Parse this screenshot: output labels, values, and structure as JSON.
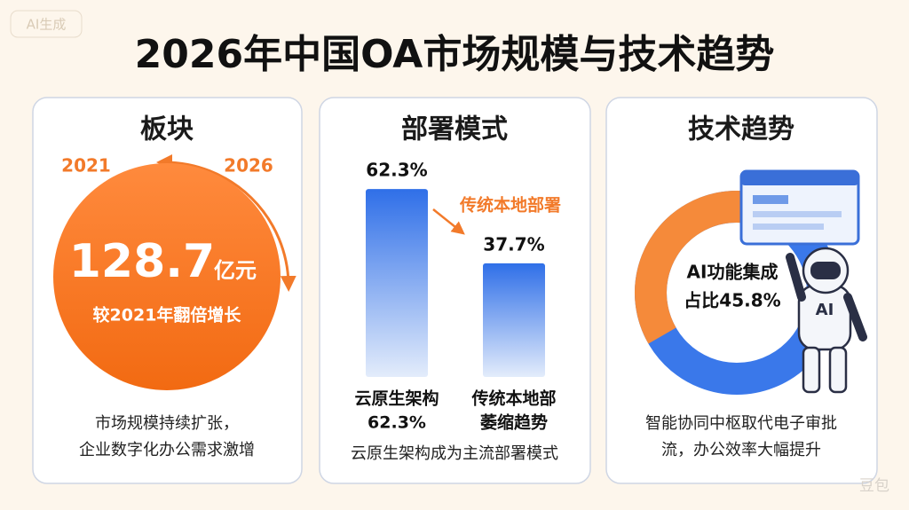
{
  "badge": "AI生成",
  "title": "2026年中国OA市场规模与技术趋势",
  "panels": [
    {
      "heading": "板块",
      "year_from": "2021",
      "year_to": "2026",
      "value": "128.7",
      "unit": "亿元",
      "note": "较2021年翻倍增长",
      "caption": [
        "市场规模持续扩张，",
        "企业数字化办公需求激增"
      ]
    },
    {
      "heading": "部署模式",
      "bars": [
        {
          "value": 62.3,
          "value_label": "62.3%",
          "label": [
            "云原生架构",
            "62.3%"
          ]
        },
        {
          "value": 37.7,
          "value_label": "37.7%",
          "label": [
            "传统本地部",
            "萎缩趋势"
          ]
        }
      ],
      "annotation": "传统本地部署",
      "caption": "云原生架构成为主流部署模式"
    },
    {
      "heading": "技术趋势",
      "share": 45.8,
      "share_label": [
        "AI功能集成",
        "占比45.8%"
      ],
      "robot_text": "AI",
      "caption": [
        "智能协同中枢取代电子审批",
        "流，办公效率大幅提升"
      ]
    }
  ],
  "watermark": "豆包"
}
